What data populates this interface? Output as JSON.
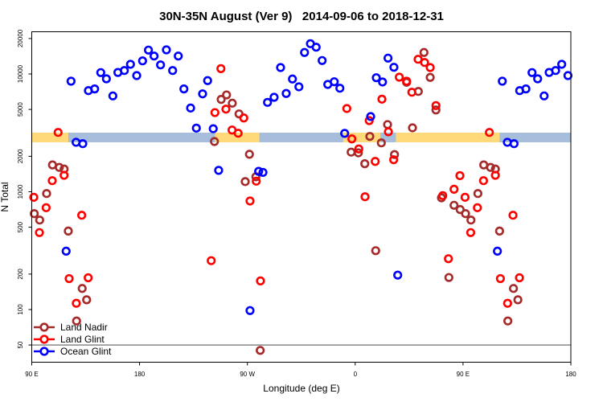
{
  "chart_data": {
    "type": "scatter",
    "title": "30N-35N August (Ver 9)   2014-09-06 to 2018-12-31",
    "xlabel": "Longitude (deg E)",
    "ylabel": "N Total",
    "x_axis": {
      "range_deg_e": [
        90,
        540
      ],
      "note": "longitude axis starts at 90 E and wraps through 180, 0 back to 180",
      "ticks": [
        {
          "value": 90,
          "label": "90 E"
        },
        {
          "value": 180,
          "label": "180"
        },
        {
          "value": 270,
          "label": "90 W"
        },
        {
          "value": 360,
          "label": "0"
        },
        {
          "value": 450,
          "label": "90 E"
        },
        {
          "value": 540,
          "label": "180"
        }
      ]
    },
    "y_axis": {
      "scale": "log",
      "ticks": [
        {
          "value": 50,
          "label": "50"
        },
        {
          "value": 100,
          "label": "100"
        },
        {
          "value": 200,
          "label": "200"
        },
        {
          "value": 500,
          "label": "500"
        },
        {
          "value": 1000,
          "label": "1000"
        },
        {
          "value": 2000,
          "label": "2000"
        },
        {
          "value": 5000,
          "label": "5000"
        },
        {
          "value": 10000,
          "label": "10000"
        },
        {
          "value": 20000,
          "label": "20000"
        }
      ]
    },
    "reference_line": 50,
    "surface_band": {
      "value_range": [
        2630,
        3175
      ],
      "land_color": "#FFD97A",
      "ocean_color": "#A6BDDB",
      "land_segments_lon": [
        [
          90,
          120.5
        ],
        [
          -117,
          -80
        ],
        [
          -10,
          21
        ],
        [
          34,
          120
        ]
      ]
    },
    "legend_position": "bottom-left",
    "series": [
      {
        "name": "Land Nadir",
        "color": "#A52A2A",
        "points": [
          [
            92.1,
            652
          ],
          [
            96.6,
            575
          ],
          [
            102.4,
            966
          ],
          [
            107.3,
            1690
          ],
          [
            113,
            1610
          ],
          [
            117,
            1560
          ],
          [
            120.5,
            464
          ],
          [
            127.4,
            80
          ],
          [
            132.1,
            151
          ],
          [
            135.8,
            121
          ],
          [
            -117.5,
            2670
          ],
          [
            -111.9,
            6080
          ],
          [
            -107.4,
            6640
          ],
          [
            -102.6,
            5650
          ],
          [
            -97,
            4580
          ],
          [
            -88.3,
            2080
          ],
          [
            -91.8,
            1220
          ],
          [
            -82.9,
            1340
          ],
          [
            -79.3,
            45
          ],
          [
            -3.4,
            2170
          ],
          [
            2.6,
            2140
          ],
          [
            8,
            1730
          ],
          [
            12.2,
            2950
          ],
          [
            17.1,
            316
          ],
          [
            21.8,
            2600
          ],
          [
            27,
            3720
          ],
          [
            32.8,
            2070
          ],
          [
            42.9,
            8500
          ],
          [
            47.8,
            3490
          ],
          [
            52.7,
            7110
          ],
          [
            57.4,
            15220
          ],
          [
            62.6,
            9350
          ],
          [
            67.4,
            4950
          ],
          [
            72,
            889
          ],
          [
            78.2,
            187
          ],
          [
            82.5,
            768
          ],
          [
            87.6,
            706
          ]
        ]
      },
      {
        "name": "Land Glint",
        "color": "#FF0000",
        "points": [
          [
            91.7,
            898
          ],
          [
            96.4,
            450
          ],
          [
            102,
            732
          ],
          [
            107.1,
            1242
          ],
          [
            112,
            3190
          ],
          [
            117,
            1380
          ],
          [
            121.2,
            183
          ],
          [
            127.2,
            113
          ],
          [
            131.7,
            632
          ],
          [
            137.1,
            186
          ],
          [
            -120.2,
            260
          ],
          [
            -117.1,
            4700
          ],
          [
            -112.1,
            11100
          ],
          [
            -107.9,
            5030
          ],
          [
            -102.8,
            3340
          ],
          [
            -97.7,
            3140
          ],
          [
            -93,
            4230
          ],
          [
            -87.8,
            835
          ],
          [
            -82.6,
            1230
          ],
          [
            -79.1,
            175
          ],
          [
            -7,
            5090
          ],
          [
            -2.8,
            2810
          ],
          [
            3,
            2310
          ],
          [
            8.2,
            907
          ],
          [
            11.7,
            4020
          ],
          [
            16.7,
            1810
          ],
          [
            22.3,
            6110
          ],
          [
            27.7,
            3230
          ],
          [
            32.1,
            1870
          ],
          [
            36.8,
            9390
          ],
          [
            42.9,
            8680
          ],
          [
            47.3,
            7000
          ],
          [
            52.5,
            13330
          ],
          [
            57.9,
            12520
          ],
          [
            62.6,
            11340
          ],
          [
            67.4,
            5390
          ],
          [
            73.1,
            927
          ],
          [
            77.8,
            270
          ],
          [
            82.5,
            1050
          ],
          [
            87.4,
            1370
          ]
        ]
      },
      {
        "name": "Ocean Glint",
        "color": "#0000FF",
        "points": [
          [
            118.7,
            313
          ],
          [
            122.8,
            8680
          ],
          [
            127,
            2630
          ],
          [
            132.6,
            2560
          ],
          [
            137.3,
            7220
          ],
          [
            142.5,
            7460
          ],
          [
            147.6,
            10270
          ],
          [
            152.3,
            9100
          ],
          [
            157.7,
            6510
          ],
          [
            161.9,
            10300
          ],
          [
            167.3,
            10700
          ],
          [
            172.4,
            12080
          ],
          [
            177.6,
            9690
          ],
          [
            -177.5,
            12920
          ],
          [
            -172.6,
            15950
          ],
          [
            -167.9,
            14200
          ],
          [
            -162.5,
            11940
          ],
          [
            -157.6,
            16020
          ],
          [
            -152.4,
            10700
          ],
          [
            -147.7,
            14200
          ],
          [
            -143,
            7460
          ],
          [
            -137.4,
            5140
          ],
          [
            -132.6,
            3470
          ],
          [
            -127.4,
            6780
          ],
          [
            -123.2,
            8780
          ],
          [
            -118.5,
            3430
          ],
          [
            -114,
            1520
          ],
          [
            -87.8,
            98
          ],
          [
            -80.6,
            1490
          ],
          [
            -77,
            1460
          ],
          [
            -73.2,
            5740
          ],
          [
            -67.7,
            6340
          ],
          [
            -62.3,
            11340
          ],
          [
            -57.6,
            6830
          ],
          [
            -52.4,
            9060
          ],
          [
            -47,
            7780
          ],
          [
            -42.3,
            15220
          ],
          [
            -37.4,
            18080
          ],
          [
            -32.6,
            16880
          ],
          [
            -27.6,
            13000
          ],
          [
            -22.9,
            8150
          ],
          [
            -17.5,
            8590
          ],
          [
            -12.8,
            7570
          ],
          [
            -8.8,
            3130
          ],
          [
            12.9,
            4350
          ],
          [
            17.6,
            9290
          ],
          [
            22.8,
            8550
          ],
          [
            27.4,
            13630
          ],
          [
            32.3,
            11400
          ],
          [
            35.5,
            196
          ]
        ]
      }
    ]
  }
}
